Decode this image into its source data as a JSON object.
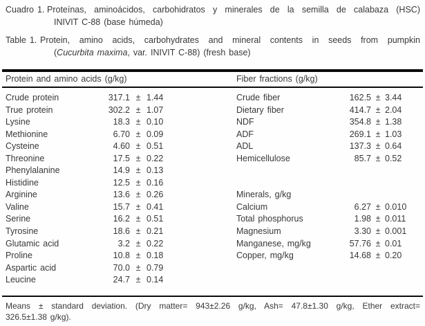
{
  "captions": {
    "es": {
      "label": "Cuadro 1.",
      "line1": "Proteínas, aminoácidos, carbohidratos y minerales de la semilla de calabaza (HSC)",
      "line2": "INIVIT C-88 (base húmeda)"
    },
    "en": {
      "label": "Table 1.",
      "line1": "Protein, amino acids, carbohydrates and mineral contents in seeds from pumpkin",
      "line2_prefix": "(",
      "line2_italic": "Cucurbita maxima",
      "line2_rest": ", var. INIVIT C-88) (fresh base)"
    }
  },
  "table": {
    "left_header": "Protein and amino acids (g/kg)",
    "right_header": "Fiber fractions (g/kg)",
    "rows": [
      {
        "l": {
          "name": "Crude protein",
          "mean": "317.1",
          "pm": "±",
          "sd": "1.44"
        },
        "r": {
          "name": "Crude fiber",
          "mean": "162.5",
          "pm": "±",
          "sd": "3.44"
        }
      },
      {
        "l": {
          "name": "True protein",
          "mean": "302.2",
          "pm": "±",
          "sd": "1.07"
        },
        "r": {
          "name": "Dietary fiber",
          "mean": "414.7",
          "pm": "±",
          "sd": "2.04"
        }
      },
      {
        "l": {
          "name": "Lysine",
          "mean": "18.3",
          "pm": "±",
          "sd": "0.10"
        },
        "r": {
          "name": "NDF",
          "mean": "354.8",
          "pm": "±",
          "sd": "1.38"
        }
      },
      {
        "l": {
          "name": "Methionine",
          "mean": "6.70",
          "pm": "±",
          "sd": "0.09"
        },
        "r": {
          "name": "ADF",
          "mean": "269.1",
          "pm": "±",
          "sd": "1.03"
        }
      },
      {
        "l": {
          "name": "Cysteine",
          "mean": "4.60",
          "pm": "±",
          "sd": "0.51"
        },
        "r": {
          "name": "ADL",
          "mean": "137.3",
          "pm": "±",
          "sd": "0.64"
        }
      },
      {
        "l": {
          "name": "Threonine",
          "mean": "17.5",
          "pm": "±",
          "sd": "0.22"
        },
        "r": {
          "name": "Hemicellulose",
          "mean": "85.7",
          "pm": "±",
          "sd": "0.52"
        }
      },
      {
        "l": {
          "name": "Phenylalanine",
          "mean": "14.9",
          "pm": "±",
          "sd": "0.13"
        },
        "r": {}
      },
      {
        "l": {
          "name": "Histidine",
          "mean": "12.5",
          "pm": "±",
          "sd": "0.16"
        },
        "r": {}
      },
      {
        "l": {
          "name": "Arginine",
          "mean": "13.6",
          "pm": "±",
          "sd": "0.26"
        },
        "r": {
          "name": "Minerals, g/kg"
        }
      },
      {
        "l": {
          "name": "Valine",
          "mean": "15.7",
          "pm": "±",
          "sd": "0.41"
        },
        "r": {
          "name": "Calcium",
          "mean": "6.27",
          "pm": "±",
          "sd": "0.010"
        }
      },
      {
        "l": {
          "name": "Serine",
          "mean": "16.2",
          "pm": "±",
          "sd": "0.51"
        },
        "r": {
          "name": "Total phosphorus",
          "mean": "1.98",
          "pm": "±",
          "sd": "0.011"
        }
      },
      {
        "l": {
          "name": "Tyrosine",
          "mean": "18.6",
          "pm": "±",
          "sd": "0.21"
        },
        "r": {
          "name": "Magnesium",
          "mean": "3.30",
          "pm": "±",
          "sd": "0.001"
        }
      },
      {
        "l": {
          "name": "Glutamic acid",
          "mean": "3.2",
          "pm": "±",
          "sd": "0.22"
        },
        "r": {
          "name": "Manganese, mg/kg",
          "mean": "57.76",
          "pm": "±",
          "sd": "0.01"
        }
      },
      {
        "l": {
          "name": "Proline",
          "mean": "10.8",
          "pm": "±",
          "sd": "0.18"
        },
        "r": {
          "name": "Copper, mg/kg",
          "mean": "14.68",
          "pm": "±",
          "sd": "0.20"
        }
      },
      {
        "l": {
          "name": "Aspartic acid",
          "mean": "70.0",
          "pm": "±",
          "sd": "0.79"
        },
        "r": {}
      },
      {
        "l": {
          "name": "Leucine",
          "mean": "24.7",
          "pm": "±",
          "sd": "0.14"
        },
        "r": {}
      }
    ]
  },
  "footnote": {
    "line1": "Means ± standard deviation. (Dry matter= 943±2.26 g/kg, Ash= 47.8±1.30 g/kg, Ether extract=",
    "line2": "326.5±1.38 g/kg)."
  }
}
